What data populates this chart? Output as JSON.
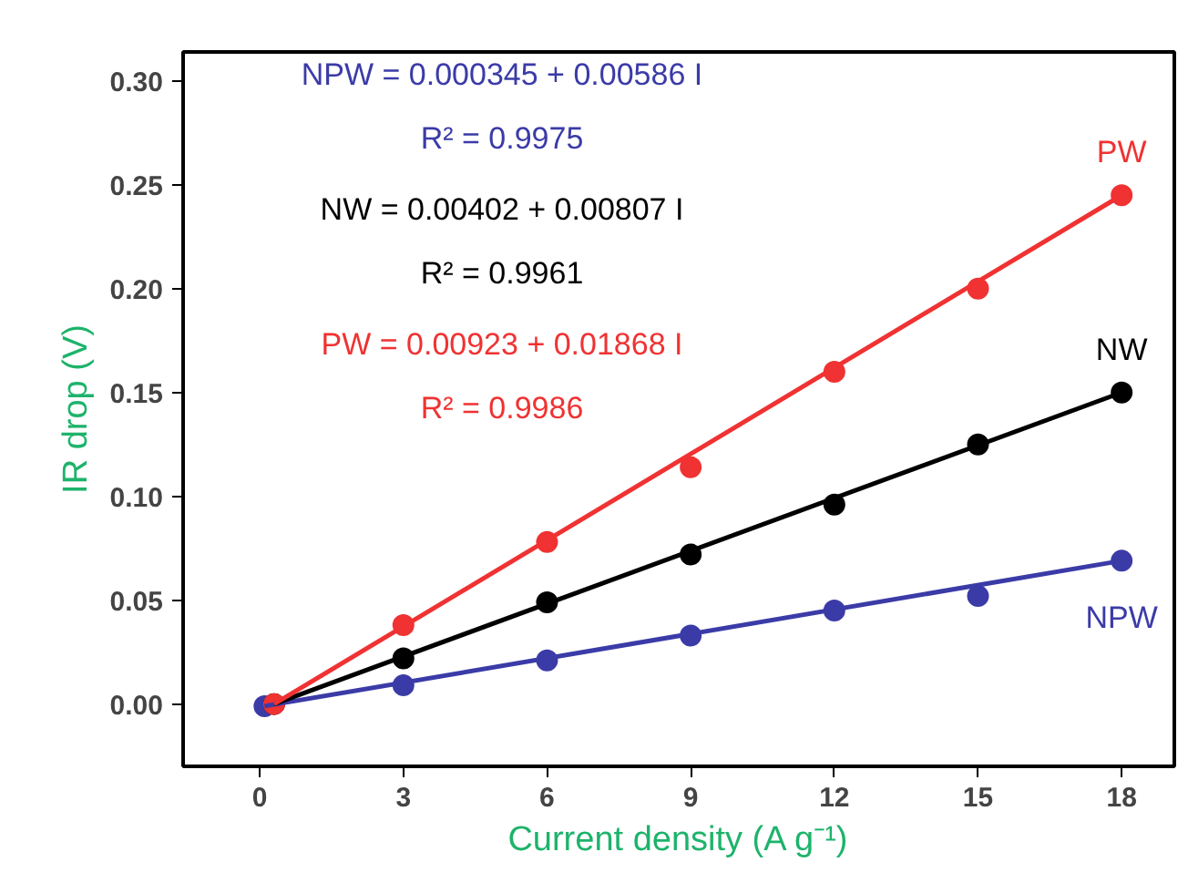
{
  "chart_data": {
    "type": "scatter",
    "xlabel": "Current density (A g⁻¹)",
    "ylabel": "IR drop (V)",
    "xlim": [
      -1.6,
      19.1
    ],
    "ylim": [
      -0.03,
      0.314
    ],
    "xticks": [
      0,
      3,
      6,
      9,
      12,
      15,
      18
    ],
    "yticks": [
      {
        "value": 0,
        "label": "0.00"
      },
      {
        "value": 0.05,
        "label": "0.05"
      },
      {
        "value": 0.1,
        "label": "0.10"
      },
      {
        "value": 0.15,
        "label": "0.15"
      },
      {
        "value": 0.2,
        "label": "0.20"
      },
      {
        "value": 0.25,
        "label": "0.25"
      },
      {
        "value": 0.3,
        "label": "0.30"
      }
    ],
    "grid": false,
    "marker": "circle",
    "series": [
      {
        "name": "NPW",
        "color": "#3b3ba8",
        "x": [
          0.1,
          3,
          6,
          9,
          12,
          15,
          18
        ],
        "values": [
          -0.001,
          0.009,
          0.021,
          0.033,
          0.045,
          0.052,
          0.069
        ]
      },
      {
        "name": "NW",
        "color": "#000000",
        "x": [
          0.3,
          3,
          6,
          9,
          12,
          15,
          18
        ],
        "values": [
          0.0,
          0.022,
          0.049,
          0.072,
          0.096,
          0.125,
          0.15
        ]
      },
      {
        "name": "PW",
        "color": "#f03232",
        "x": [
          0.3,
          3,
          6,
          9,
          12,
          15,
          18
        ],
        "values": [
          0.0,
          0.038,
          0.078,
          0.114,
          0.16,
          0.2,
          0.245
        ]
      },
      {
        "type": "line",
        "marker": "none",
        "color": "#3b3ba8",
        "x": [
          0.1,
          18
        ],
        "values": [
          -0.001,
          0.069
        ]
      },
      {
        "type": "line",
        "marker": "none",
        "color": "#000000",
        "x": [
          0.3,
          18
        ],
        "values": [
          0.0,
          0.15
        ]
      },
      {
        "type": "line",
        "marker": "none",
        "color": "#f03232",
        "x": [
          0.3,
          18
        ],
        "values": [
          0.0,
          0.245
        ]
      }
    ],
    "annotations": [
      "NPW = 0.000345 + 0.00586 I",
      "R² = 0.9975",
      "NW = 0.00402 + 0.00807 I",
      "R² = 0.9961",
      "PW = 0.00923 + 0.01868 I",
      "R² = 0.9986"
    ]
  }
}
